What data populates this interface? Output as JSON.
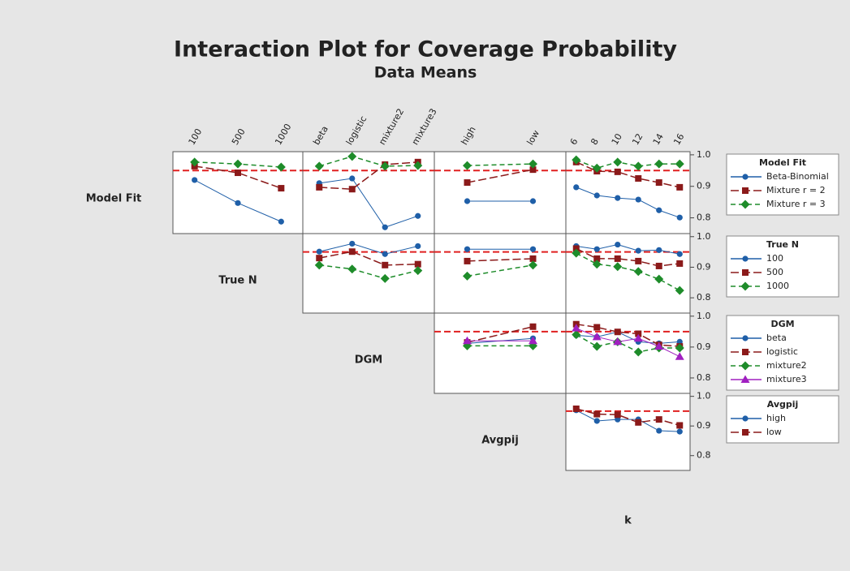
{
  "chart_data": {
    "type": "interaction",
    "title": "Interaction Plot for Coverage Probability",
    "subtitle": "Data Means",
    "ylim": [
      0.75,
      1.01
    ],
    "yticks": [
      {
        "value": 1.0,
        "label": "1.0"
      },
      0.9,
      0.8
    ],
    "reference_line": 0.95,
    "factors": [
      {
        "name": "Model Fit",
        "levels": [
          "Beta-Binomial",
          "Mixture r = 2",
          "Mixture r = 3"
        ],
        "colors": [
          "#1f5fa8",
          "#8b1a1a",
          "#1e8c2a"
        ]
      },
      {
        "name": "True N",
        "levels": [
          100,
          500,
          1000
        ],
        "colors": [
          "#1f5fa8",
          "#8b1a1a",
          "#1e8c2a"
        ]
      },
      {
        "name": "DGM",
        "levels": [
          "beta",
          "logistic",
          "mixture2",
          "mixture3"
        ],
        "colors": [
          "#1f5fa8",
          "#8b1a1a",
          "#1e8c2a",
          "#a020c0"
        ]
      },
      {
        "name": "Avgpij",
        "levels": [
          "high",
          "low"
        ],
        "colors": [
          "#1f5fa8",
          "#8b1a1a"
        ]
      },
      {
        "name": "k",
        "levels": [
          6,
          8,
          10,
          12,
          14,
          16
        ]
      }
    ],
    "panels": [
      {
        "trace": 0,
        "x": 1,
        "series": [
          {
            "values": [
              0.92,
              0.847,
              0.788
            ]
          },
          {
            "values": [
              0.964,
              0.943,
              0.894
            ]
          },
          {
            "values": [
              0.977,
              0.971,
              0.961
            ]
          }
        ]
      },
      {
        "trace": 0,
        "x": 2,
        "series": [
          {
            "values": [
              0.91,
              0.925,
              0.77,
              0.806
            ]
          },
          {
            "values": [
              0.897,
              0.891,
              0.969,
              0.977
            ]
          },
          {
            "values": [
              0.964,
              0.995,
              0.964,
              0.966
            ]
          }
        ]
      },
      {
        "trace": 0,
        "x": 3,
        "series": [
          {
            "values": [
              0.853,
              0.853
            ]
          },
          {
            "values": [
              0.912,
              0.953
            ]
          },
          {
            "values": [
              0.966,
              0.971
            ]
          }
        ]
      },
      {
        "trace": 0,
        "x": 4,
        "series": [
          {
            "values": [
              0.897,
              0.871,
              0.863,
              0.858,
              0.824,
              0.801
            ]
          },
          {
            "values": [
              0.977,
              0.948,
              0.946,
              0.925,
              0.912,
              0.897
            ]
          },
          {
            "values": [
              0.984,
              0.958,
              0.977,
              0.964,
              0.971,
              0.971
            ]
          }
        ]
      },
      {
        "trace": 1,
        "x": 2,
        "series": [
          {
            "values": [
              0.951,
              0.977,
              0.943,
              0.969
            ]
          },
          {
            "values": [
              0.93,
              0.951,
              0.907,
              0.91
            ]
          },
          {
            "values": [
              0.907,
              0.894,
              0.863,
              0.889
            ]
          }
        ]
      },
      {
        "trace": 1,
        "x": 3,
        "series": [
          {
            "values": [
              0.959,
              0.959
            ]
          },
          {
            "values": [
              0.92,
              0.928
            ]
          },
          {
            "values": [
              0.871,
              0.907
            ]
          }
        ]
      },
      {
        "trace": 1,
        "x": 4,
        "series": [
          {
            "values": [
              0.969,
              0.959,
              0.974,
              0.954,
              0.956,
              0.943
            ]
          },
          {
            "values": [
              0.961,
              0.928,
              0.928,
              0.92,
              0.904,
              0.912
            ]
          },
          {
            "values": [
              0.946,
              0.91,
              0.902,
              0.886,
              0.861,
              0.824
            ]
          }
        ]
      },
      {
        "trace": 2,
        "x": 3,
        "series": [
          {
            "values": [
              0.912,
              0.928
            ]
          },
          {
            "values": [
              0.915,
              0.966
            ]
          },
          {
            "values": [
              0.904,
              0.904
            ]
          },
          {
            "values": [
              0.92,
              0.92
            ]
          }
        ]
      },
      {
        "trace": 2,
        "x": 4,
        "series": [
          {
            "values": [
              0.938,
              0.933,
              0.949,
              0.917,
              0.912,
              0.917
            ]
          },
          {
            "values": [
              0.974,
              0.964,
              0.949,
              0.943,
              0.907,
              0.902
            ]
          },
          {
            "values": [
              0.94,
              0.902,
              0.917,
              0.884,
              0.897,
              0.897
            ]
          },
          {
            "values": [
              0.961,
              0.933,
              0.917,
              0.928,
              0.902,
              0.869
            ]
          }
        ]
      },
      {
        "trace": 3,
        "x": 4,
        "series": [
          {
            "values": [
              0.953,
              0.917,
              0.922,
              0.922,
              0.884,
              0.881
            ]
          },
          {
            "values": [
              0.958,
              0.94,
              0.938,
              0.912,
              0.922,
              0.902
            ]
          }
        ]
      }
    ]
  }
}
